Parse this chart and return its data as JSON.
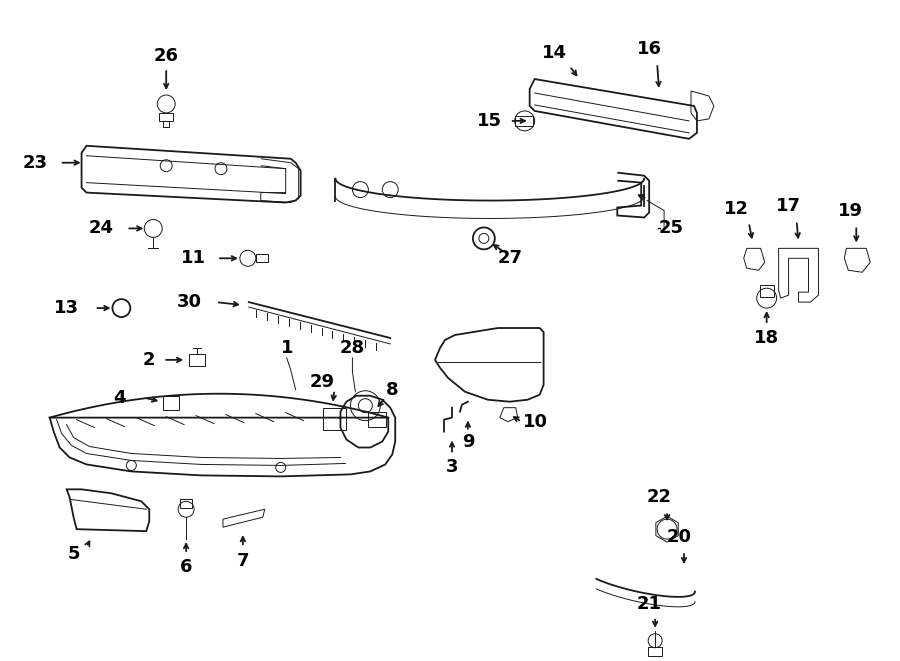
{
  "bg_color": "#ffffff",
  "lc": "#1a1a1a",
  "lw": 1.3,
  "lw_thin": 0.7,
  "fontsize_label": 13,
  "fontsize_small": 10
}
